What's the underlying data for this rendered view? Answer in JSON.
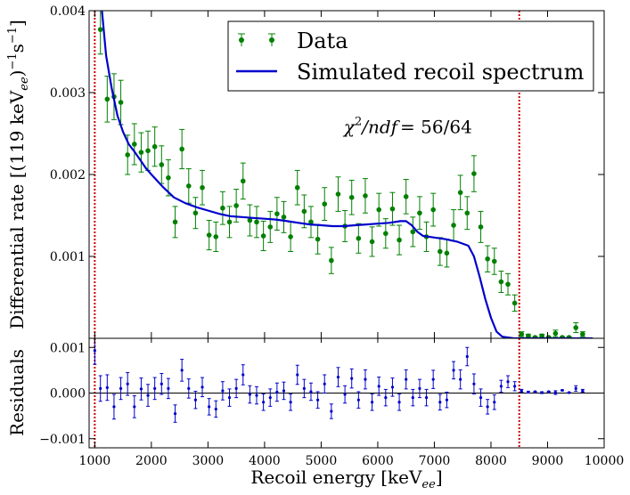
{
  "chart_data": {
    "type": "scatter",
    "xlabel": "Recoil energy [keV",
    "xlabel_sub": "ee",
    "xlabel_close": "]",
    "ylabel_top": "Differential rate [(119 keV",
    "ylabel_top_sub": "ee",
    "ylabel_top_tail": ")",
    "ylabel_top_exp1": "−1",
    "ylabel_top_s": "s",
    "ylabel_top_exp2": "−1",
    "ylabel_top_close": "]",
    "ylabel_bottom": "Residuals",
    "annotation": {
      "chi_symbol": "χ",
      "chi_sup": "2",
      "chi_rest": "/ndf",
      "chi_value": "= 56/64",
      "x": 5400,
      "y": 0.00258
    },
    "legend": {
      "placement": "top-right",
      "entries": [
        {
          "label": "Data",
          "marker": "point-errorbar",
          "color": "#008000"
        },
        {
          "label": "Simulated recoil spectrum",
          "marker": "line",
          "color": "#0000cc"
        }
      ]
    },
    "xlim": [
      900,
      10000
    ],
    "top_ylim": [
      0,
      0.004
    ],
    "bottom_ylim": [
      -0.0012,
      0.0012
    ],
    "x_ticks": [
      "1000",
      "2000",
      "3000",
      "4000",
      "5000",
      "6000",
      "7000",
      "8000",
      "9000",
      "10000"
    ],
    "x_tick_values": [
      1000,
      2000,
      3000,
      4000,
      5000,
      6000,
      7000,
      8000,
      9000,
      10000
    ],
    "top_y_ticks": [
      "0.001",
      "0.002",
      "0.003",
      "0.004"
    ],
    "top_y_tick_values": [
      0.001,
      0.002,
      0.003,
      0.004
    ],
    "bottom_y_ticks": [
      "0.001",
      "0.000",
      "−0.001"
    ],
    "bottom_y_tick_values": [
      0.001,
      0.0,
      -0.001
    ],
    "vlines": [
      1000,
      8500
    ],
    "colors": {
      "data": "#008000",
      "fit": "#0000cc",
      "residuals": "#0000cc",
      "vline": "#cc0000"
    },
    "data": {
      "x": [
        1100,
        1220,
        1340,
        1460,
        1580,
        1700,
        1820,
        1940,
        2060,
        2180,
        2300,
        2420,
        2540,
        2660,
        2780,
        2900,
        3020,
        3140,
        3260,
        3380,
        3500,
        3620,
        3740,
        3860,
        3980,
        4100,
        4220,
        4340,
        4460,
        4580,
        4700,
        4820,
        4940,
        5060,
        5180,
        5300,
        5420,
        5540,
        5660,
        5780,
        5900,
        6020,
        6140,
        6260,
        6380,
        6500,
        6620,
        6740,
        6860,
        6980,
        7100,
        7220,
        7340,
        7460,
        7580,
        7700,
        7820,
        7940,
        8060,
        8180,
        8300,
        8420,
        8540,
        8660,
        8780,
        8900,
        9020,
        9140,
        9260,
        9380,
        9500,
        9620
      ],
      "y": [
        0.00377,
        0.00292,
        0.00295,
        0.00288,
        0.00224,
        0.00237,
        0.00227,
        0.00229,
        0.00234,
        0.00212,
        0.00196,
        0.00142,
        0.00231,
        0.00186,
        0.00153,
        0.00184,
        0.00126,
        0.00124,
        0.00159,
        0.00142,
        0.00162,
        0.00192,
        0.00144,
        0.00142,
        0.00125,
        0.00136,
        0.00152,
        0.00148,
        0.00124,
        0.00184,
        0.00155,
        0.00142,
        0.00121,
        0.00164,
        0.00095,
        0.00176,
        0.00137,
        0.00172,
        0.00122,
        0.00174,
        0.00118,
        0.00157,
        0.00128,
        0.00158,
        0.0012,
        0.00173,
        0.0013,
        0.00153,
        0.00124,
        0.00157,
        0.00106,
        0.00104,
        0.00138,
        0.00178,
        0.00153,
        0.00201,
        0.00136,
        0.00097,
        0.00094,
        0.00069,
        0.00066,
        0.00043,
        5e-05,
        3e-05,
        1e-05,
        3e-05,
        1e-05,
        6e-05,
        1e-05,
        1e-05,
        0.00013,
        5e-05
      ],
      "err": [
        0.0003,
        0.00028,
        0.00028,
        0.00027,
        0.00024,
        0.00025,
        0.00024,
        0.00024,
        0.00024,
        0.00023,
        0.00022,
        0.00019,
        0.00024,
        0.00021,
        0.00019,
        0.00021,
        0.00018,
        0.00018,
        0.0002,
        0.00019,
        0.0002,
        0.00022,
        0.00019,
        0.00019,
        0.00018,
        0.00019,
        0.0002,
        0.00019,
        0.00018,
        0.00021,
        0.0002,
        0.00019,
        0.00018,
        0.0002,
        0.00016,
        0.00021,
        0.00019,
        0.00021,
        0.00018,
        0.00021,
        0.00018,
        0.0002,
        0.00018,
        0.0002,
        0.00018,
        0.00021,
        0.00018,
        0.0002,
        0.00018,
        0.0002,
        0.00017,
        0.00017,
        0.00019,
        0.00021,
        0.0002,
        0.00022,
        0.00019,
        0.00016,
        0.00016,
        0.00013,
        0.00013,
        0.0001,
        3e-05,
        2e-05,
        1e-05,
        2e-05,
        1e-05,
        4e-05,
        1e-05,
        1e-05,
        6e-05,
        3e-05
      ]
    },
    "fit": {
      "x": [
        1100,
        1200,
        1300,
        1400,
        1500,
        1600,
        1700,
        1800,
        1900,
        2000,
        2200,
        2400,
        2600,
        2800,
        3000,
        3200,
        3400,
        3600,
        3800,
        4000,
        4200,
        4400,
        4600,
        4800,
        5000,
        5200,
        5400,
        5600,
        5800,
        6000,
        6200,
        6400,
        6500,
        6600,
        6700,
        6800,
        7000,
        7200,
        7400,
        7600,
        7700,
        7800,
        7900,
        8000,
        8100,
        8200,
        8300,
        8400,
        8600,
        8800,
        9000,
        9200,
        9400,
        9600,
        9800
      ],
      "y": [
        0.0042,
        0.00345,
        0.00305,
        0.00272,
        0.00252,
        0.00237,
        0.00228,
        0.00218,
        0.00208,
        0.002,
        0.00185,
        0.00172,
        0.00165,
        0.0016,
        0.00156,
        0.00152,
        0.00149,
        0.00148,
        0.00147,
        0.00146,
        0.00145,
        0.00143,
        0.00141,
        0.00139,
        0.00138,
        0.00137,
        0.00137,
        0.00138,
        0.00139,
        0.0014,
        0.00141,
        0.00143,
        0.00143,
        0.00138,
        0.0013,
        0.00125,
        0.00123,
        0.00121,
        0.00118,
        0.00113,
        0.001,
        0.00075,
        0.00048,
        0.00025,
        8e-05,
        2e-05,
        1e-05,
        0.0,
        0.0,
        0.0,
        0.0,
        0.0,
        0.0,
        0.0,
        0.0
      ]
    },
    "residuals": {
      "x": [
        1000,
        1100,
        1220,
        1340,
        1460,
        1580,
        1700,
        1820,
        1940,
        2060,
        2180,
        2300,
        2420,
        2540,
        2660,
        2780,
        2900,
        3020,
        3140,
        3260,
        3380,
        3500,
        3620,
        3740,
        3860,
        3980,
        4100,
        4220,
        4340,
        4460,
        4580,
        4700,
        4820,
        4940,
        5060,
        5180,
        5300,
        5420,
        5540,
        5660,
        5780,
        5900,
        6020,
        6140,
        6260,
        6380,
        6500,
        6620,
        6740,
        6860,
        6980,
        7100,
        7220,
        7340,
        7460,
        7580,
        7700,
        7820,
        7940,
        8060,
        8180,
        8300,
        8420,
        8540,
        8660,
        8780,
        8900,
        9020,
        9140,
        9260,
        9380,
        9500,
        9620
      ],
      "y": [
        0.00093,
        0.0001,
        0.00012,
        -0.0003,
        0.0001,
        0.0002,
        -0.0003,
        9e-05,
        -5e-05,
        0.0001,
        0.0002,
        0.0001,
        -0.00045,
        0.0005,
        0.0001,
        -0.00015,
        0.00013,
        -0.0003,
        -0.00035,
        5e-05,
        -0.0001,
        0.0001,
        0.0004,
        -3e-05,
        -5e-05,
        -0.0002,
        -0.0001,
        2e-05,
        5e-05,
        -0.0002,
        0.0004,
        0.0001,
        3e-05,
        -0.00015,
        0.0002,
        -0.0004,
        0.00035,
        -3e-05,
        0.00032,
        -0.00015,
        0.0003,
        -0.0002,
        0.00015,
        -0.0001,
        0.00013,
        -0.0002,
        0.0003,
        -0.0001,
        0.0001,
        -0.0001,
        0.0003,
        -0.0002,
        -0.00015,
        0.0005,
        0.0003,
        0.0008,
        0.0002,
        -0.0001,
        -0.0003,
        -0.0002,
        0.00015,
        0.00025,
        0.00015,
        5e-05,
        2e-05,
        3e-05,
        1e-05,
        3e-05,
        1e-05,
        6e-05,
        1e-05,
        0.0001,
        5e-05
      ],
      "err": [
        0.0003,
        0.00028,
        0.00028,
        0.00027,
        0.00024,
        0.00025,
        0.00024,
        0.00024,
        0.00024,
        0.00024,
        0.00023,
        0.00022,
        0.00019,
        0.00024,
        0.00021,
        0.00019,
        0.00021,
        0.00018,
        0.00018,
        0.0002,
        0.00019,
        0.0002,
        0.00022,
        0.00019,
        0.00019,
        0.00018,
        0.00019,
        0.0002,
        0.00019,
        0.00018,
        0.00021,
        0.0002,
        0.00019,
        0.00018,
        0.0002,
        0.00016,
        0.00021,
        0.00019,
        0.00021,
        0.00018,
        0.00021,
        0.00018,
        0.0002,
        0.00018,
        0.0002,
        0.00018,
        0.00021,
        0.00018,
        0.0002,
        0.00018,
        0.0002,
        0.00017,
        0.00017,
        0.00019,
        0.00021,
        0.0002,
        0.00022,
        0.00019,
        0.00016,
        0.00016,
        0.00013,
        0.00013,
        0.0001,
        3e-05,
        2e-05,
        1e-05,
        2e-05,
        1e-05,
        4e-05,
        1e-05,
        1e-05,
        6e-05,
        3e-05
      ]
    }
  }
}
